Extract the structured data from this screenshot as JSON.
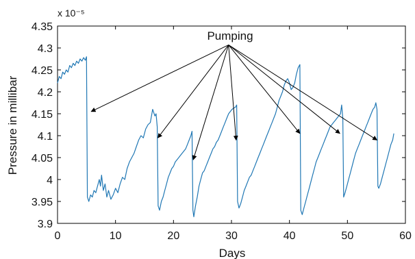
{
  "colors": {
    "series": "#1f77b4",
    "axes": "#000000",
    "arrows": "#000000",
    "background": "#ffffff"
  },
  "chart_data": {
    "type": "line",
    "title": "",
    "xlabel": "Days",
    "ylabel": "Pressure in millibar",
    "y_multiplier_label": "x 10⁻⁵",
    "xlim": [
      0,
      60
    ],
    "ylim": [
      3.9,
      4.35
    ],
    "x_ticks": [
      0,
      10,
      20,
      30,
      40,
      50,
      60
    ],
    "x_tick_labels": [
      "0",
      "10",
      "20",
      "30",
      "40",
      "50",
      "60"
    ],
    "y_ticks": [
      3.9,
      3.95,
      4.0,
      4.05,
      4.1,
      4.15,
      4.2,
      4.25,
      4.3,
      4.35
    ],
    "y_tick_labels": [
      "3.9",
      "3.95",
      "4",
      "4.05",
      "4.1",
      "4.15",
      "4.2",
      "4.25",
      "4.3",
      "4.35"
    ],
    "grid": false,
    "series": [
      {
        "points": [
          [
            0.0,
            4.22
          ],
          [
            0.3,
            4.235
          ],
          [
            0.6,
            4.23
          ],
          [
            0.9,
            4.245
          ],
          [
            1.2,
            4.24
          ],
          [
            1.5,
            4.25
          ],
          [
            1.8,
            4.245
          ],
          [
            2.1,
            4.26
          ],
          [
            2.4,
            4.255
          ],
          [
            2.7,
            4.265
          ],
          [
            3.0,
            4.26
          ],
          [
            3.3,
            4.27
          ],
          [
            3.6,
            4.265
          ],
          [
            3.9,
            4.275
          ],
          [
            4.2,
            4.27
          ],
          [
            4.5,
            4.278
          ],
          [
            4.8,
            4.272
          ],
          [
            5.0,
            4.28
          ],
          [
            5.15,
            3.96
          ],
          [
            5.4,
            3.95
          ],
          [
            5.7,
            3.965
          ],
          [
            6.0,
            3.96
          ],
          [
            6.3,
            3.975
          ],
          [
            6.6,
            3.97
          ],
          [
            6.9,
            3.985
          ],
          [
            7.2,
            4.0
          ],
          [
            7.4,
            3.985
          ],
          [
            7.6,
            4.01
          ],
          [
            7.9,
            3.975
          ],
          [
            8.2,
            3.99
          ],
          [
            8.5,
            3.96
          ],
          [
            8.8,
            3.975
          ],
          [
            9.2,
            3.955
          ],
          [
            9.6,
            3.965
          ],
          [
            10.0,
            3.98
          ],
          [
            10.4,
            3.97
          ],
          [
            10.8,
            3.99
          ],
          [
            11.2,
            4.005
          ],
          [
            11.6,
            4.0
          ],
          [
            12.0,
            4.025
          ],
          [
            12.4,
            4.04
          ],
          [
            12.8,
            4.05
          ],
          [
            13.2,
            4.06
          ],
          [
            13.6,
            4.075
          ],
          [
            14.0,
            4.09
          ],
          [
            14.4,
            4.1
          ],
          [
            14.8,
            4.095
          ],
          [
            15.2,
            4.115
          ],
          [
            15.6,
            4.125
          ],
          [
            16.0,
            4.13
          ],
          [
            16.4,
            4.16
          ],
          [
            16.8,
            4.145
          ],
          [
            17.0,
            4.15
          ],
          [
            17.2,
            4.12
          ],
          [
            17.35,
            3.94
          ],
          [
            17.6,
            3.93
          ],
          [
            17.9,
            3.95
          ],
          [
            18.2,
            3.96
          ],
          [
            18.5,
            3.975
          ],
          [
            18.8,
            3.99
          ],
          [
            19.1,
            4.005
          ],
          [
            19.4,
            4.015
          ],
          [
            19.7,
            4.025
          ],
          [
            20.0,
            4.03
          ],
          [
            20.3,
            4.04
          ],
          [
            20.6,
            4.045
          ],
          [
            20.9,
            4.05
          ],
          [
            21.2,
            4.055
          ],
          [
            21.5,
            4.06
          ],
          [
            21.8,
            4.065
          ],
          [
            22.1,
            4.07
          ],
          [
            22.4,
            4.08
          ],
          [
            22.7,
            4.09
          ],
          [
            23.0,
            4.1
          ],
          [
            23.2,
            4.11
          ],
          [
            23.35,
            3.93
          ],
          [
            23.5,
            3.915
          ],
          [
            23.8,
            3.94
          ],
          [
            24.1,
            3.96
          ],
          [
            24.4,
            3.985
          ],
          [
            24.7,
            4.0
          ],
          [
            25.0,
            4.015
          ],
          [
            25.3,
            4.02
          ],
          [
            25.6,
            4.03
          ],
          [
            25.9,
            4.04
          ],
          [
            26.2,
            4.05
          ],
          [
            26.5,
            4.06
          ],
          [
            26.8,
            4.07
          ],
          [
            27.1,
            4.075
          ],
          [
            27.4,
            4.085
          ],
          [
            27.7,
            4.09
          ],
          [
            28.0,
            4.1
          ],
          [
            28.3,
            4.11
          ],
          [
            28.6,
            4.12
          ],
          [
            28.9,
            4.13
          ],
          [
            29.2,
            4.14
          ],
          [
            29.5,
            4.15
          ],
          [
            29.8,
            4.155
          ],
          [
            30.1,
            4.16
          ],
          [
            30.4,
            4.163
          ],
          [
            30.7,
            4.165
          ],
          [
            30.9,
            4.17
          ],
          [
            31.05,
            3.95
          ],
          [
            31.3,
            3.935
          ],
          [
            31.6,
            3.945
          ],
          [
            31.9,
            3.96
          ],
          [
            32.2,
            3.975
          ],
          [
            32.5,
            3.985
          ],
          [
            32.8,
            3.995
          ],
          [
            33.1,
            4.005
          ],
          [
            33.4,
            4.01
          ],
          [
            33.7,
            4.02
          ],
          [
            34.0,
            4.03
          ],
          [
            34.3,
            4.04
          ],
          [
            34.6,
            4.05
          ],
          [
            34.9,
            4.06
          ],
          [
            35.2,
            4.07
          ],
          [
            35.5,
            4.08
          ],
          [
            35.8,
            4.09
          ],
          [
            36.1,
            4.1
          ],
          [
            36.4,
            4.11
          ],
          [
            36.7,
            4.12
          ],
          [
            37.0,
            4.13
          ],
          [
            37.3,
            4.14
          ],
          [
            37.6,
            4.15
          ],
          [
            37.9,
            4.165
          ],
          [
            38.2,
            4.18
          ],
          [
            38.5,
            4.19
          ],
          [
            38.8,
            4.2
          ],
          [
            39.1,
            4.215
          ],
          [
            39.4,
            4.225
          ],
          [
            39.7,
            4.23
          ],
          [
            40.0,
            4.22
          ],
          [
            40.3,
            4.205
          ],
          [
            40.6,
            4.21
          ],
          [
            40.9,
            4.22
          ],
          [
            41.2,
            4.24
          ],
          [
            41.5,
            4.255
          ],
          [
            41.8,
            4.262
          ],
          [
            41.95,
            3.93
          ],
          [
            42.2,
            3.92
          ],
          [
            42.5,
            3.935
          ],
          [
            42.8,
            3.95
          ],
          [
            43.1,
            3.965
          ],
          [
            43.4,
            3.98
          ],
          [
            43.7,
            3.995
          ],
          [
            44.0,
            4.01
          ],
          [
            44.3,
            4.025
          ],
          [
            44.6,
            4.04
          ],
          [
            44.9,
            4.05
          ],
          [
            45.2,
            4.06
          ],
          [
            45.5,
            4.07
          ],
          [
            45.8,
            4.08
          ],
          [
            46.1,
            4.09
          ],
          [
            46.4,
            4.1
          ],
          [
            46.7,
            4.11
          ],
          [
            47.0,
            4.12
          ],
          [
            47.3,
            4.125
          ],
          [
            47.6,
            4.13
          ],
          [
            47.9,
            4.135
          ],
          [
            48.2,
            4.14
          ],
          [
            48.5,
            4.145
          ],
          [
            48.8,
            4.15
          ],
          [
            49.0,
            4.17
          ],
          [
            49.2,
            4.14
          ],
          [
            49.35,
            3.96
          ],
          [
            49.6,
            3.97
          ],
          [
            49.9,
            3.985
          ],
          [
            50.2,
            4.0
          ],
          [
            50.5,
            4.015
          ],
          [
            50.8,
            4.03
          ],
          [
            51.1,
            4.045
          ],
          [
            51.4,
            4.06
          ],
          [
            51.7,
            4.07
          ],
          [
            52.0,
            4.08
          ],
          [
            52.3,
            4.09
          ],
          [
            52.6,
            4.1
          ],
          [
            52.9,
            4.11
          ],
          [
            53.2,
            4.12
          ],
          [
            53.5,
            4.13
          ],
          [
            53.8,
            4.14
          ],
          [
            54.1,
            4.15
          ],
          [
            54.4,
            4.16
          ],
          [
            54.7,
            4.165
          ],
          [
            54.9,
            4.175
          ],
          [
            55.1,
            4.16
          ],
          [
            55.25,
            3.985
          ],
          [
            55.4,
            3.98
          ],
          [
            55.7,
            3.99
          ],
          [
            56.0,
            4.005
          ],
          [
            56.3,
            4.02
          ],
          [
            56.6,
            4.035
          ],
          [
            56.9,
            4.05
          ],
          [
            57.2,
            4.065
          ],
          [
            57.5,
            4.08
          ],
          [
            57.8,
            4.09
          ],
          [
            58.0,
            4.105
          ]
        ]
      }
    ],
    "annotations": [
      {
        "text": "Pumping",
        "text_position": [
          30,
          4.32
        ],
        "arrow_origin": [
          29.5,
          4.307
        ],
        "arrow_targets": [
          [
            5.8,
            4.155
          ],
          [
            17.3,
            4.095
          ],
          [
            23.4,
            4.045
          ],
          [
            30.8,
            4.09
          ],
          [
            41.8,
            4.105
          ],
          [
            48.7,
            4.105
          ],
          [
            55.1,
            4.09
          ]
        ]
      }
    ]
  }
}
